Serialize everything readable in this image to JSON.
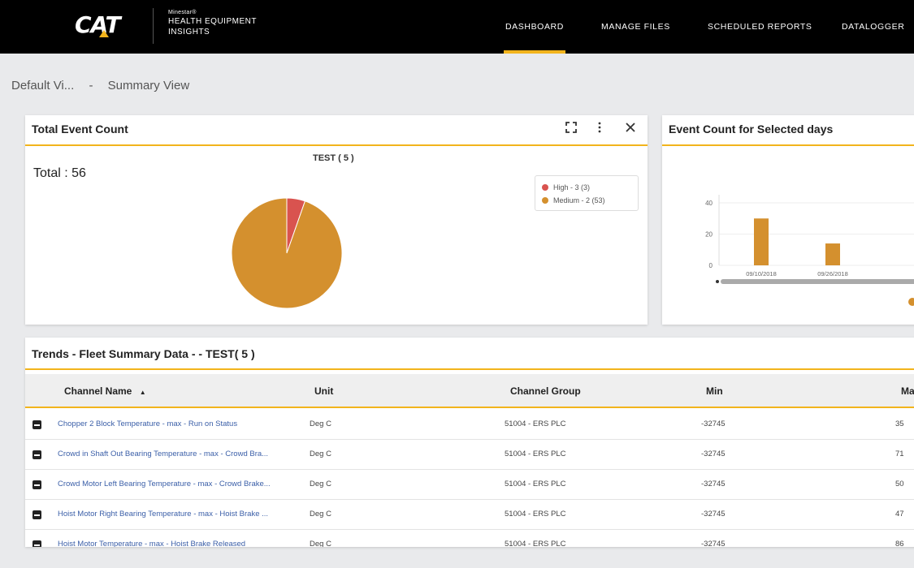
{
  "header": {
    "logo": "CAT",
    "brand_small": "Minestar®",
    "brand_line1": "HEALTH EQUIPMENT",
    "brand_line2": "INSIGHTS",
    "nav": [
      {
        "label": "DASHBOARD",
        "active": true
      },
      {
        "label": "MANAGE FILES",
        "active": false
      },
      {
        "label": "SCHEDULED REPORTS",
        "active": false
      },
      {
        "label": "DATALOGGER",
        "active": false
      }
    ]
  },
  "breadcrumb": {
    "view": "Default Vi...",
    "separator": "-",
    "subview": "Summary View"
  },
  "event_card": {
    "title": "Total Event Count",
    "chart_title": "TEST ( 5 )",
    "total_label": "Total : 56",
    "legend": [
      {
        "label": "High - 3 (3)",
        "color": "#d9534f"
      },
      {
        "label": "Medium - 2 (53)",
        "color": "#d4902e"
      }
    ],
    "icons": [
      "fullscreen-icon",
      "more-vert-icon",
      "close-icon"
    ]
  },
  "days_card": {
    "title": "Event Count for Selected days"
  },
  "chart_data": [
    {
      "type": "pie",
      "title": "TEST ( 5 )",
      "categories": [
        "High - 3 (3)",
        "Medium - 2 (53)"
      ],
      "values": [
        3,
        53
      ],
      "colors": [
        "#d9534f",
        "#d4902e"
      ],
      "legend": "top-right"
    },
    {
      "type": "bar",
      "title": "",
      "categories": [
        "09/10/2018",
        "09/26/2018"
      ],
      "values": [
        30,
        14
      ],
      "ylim": [
        0,
        40
      ],
      "yticks": [
        0,
        20,
        40
      ],
      "color": "#d4902e"
    }
  ],
  "table": {
    "title": "Trends - Fleet Summary Data - - TEST( 5 )",
    "columns": [
      "Channel Name",
      "Unit",
      "Channel Group",
      "Min",
      "Ma"
    ],
    "sort_indicator": "▲",
    "rows": [
      [
        "Chopper 2 Block Temperature - max - Run on Status",
        "Deg C",
        "51004 - ERS PLC",
        "-32745",
        "35"
      ],
      [
        "Crowd in Shaft Out Bearing Temperature - max - Crowd Bra...",
        "Deg C",
        "51004 - ERS PLC",
        "-32745",
        "71"
      ],
      [
        "Crowd Motor Left Bearing Temperature - max - Crowd Brake...",
        "Deg C",
        "51004 - ERS PLC",
        "-32745",
        "50"
      ],
      [
        "Hoist Motor Right Bearing Temperature - max - Hoist Brake ...",
        "Deg C",
        "51004 - ERS PLC",
        "-32745",
        "47"
      ],
      [
        "Hoist Motor Temperature - max - Hoist Brake Released",
        "Deg C",
        "51004 - ERS PLC",
        "-32745",
        "86"
      ]
    ]
  }
}
